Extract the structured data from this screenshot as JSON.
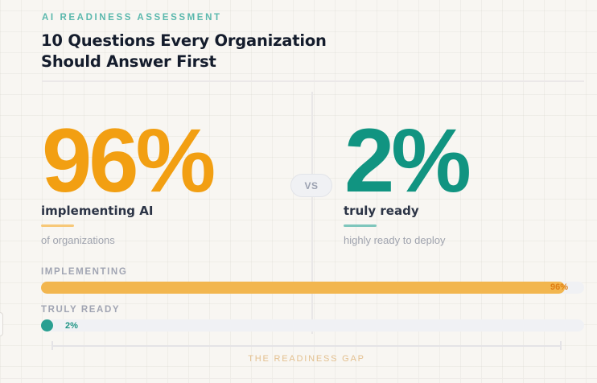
{
  "header": {
    "eyebrow": "AI READINESS ASSESSMENT",
    "title_line1": "10 Questions Every Organization",
    "title_line2": "Should Answer First"
  },
  "comparison": {
    "vs_label": "VS",
    "left": {
      "value": "96%",
      "label": "implementing AI",
      "sublabel": "of organizations",
      "color": "#f29f12"
    },
    "right": {
      "value": "2%",
      "label": "truly ready",
      "sublabel": "highly ready to deploy",
      "color": "#119481"
    }
  },
  "bars": [
    {
      "label": "IMPLEMENTING",
      "value": 96,
      "value_label": "96%",
      "color": "#f2b64f"
    },
    {
      "label": "TRULY READY",
      "value": 2,
      "value_label": "2%",
      "color": "#2a9f91"
    }
  ],
  "footer": {
    "gap_label": "THE READINESS GAP"
  }
}
